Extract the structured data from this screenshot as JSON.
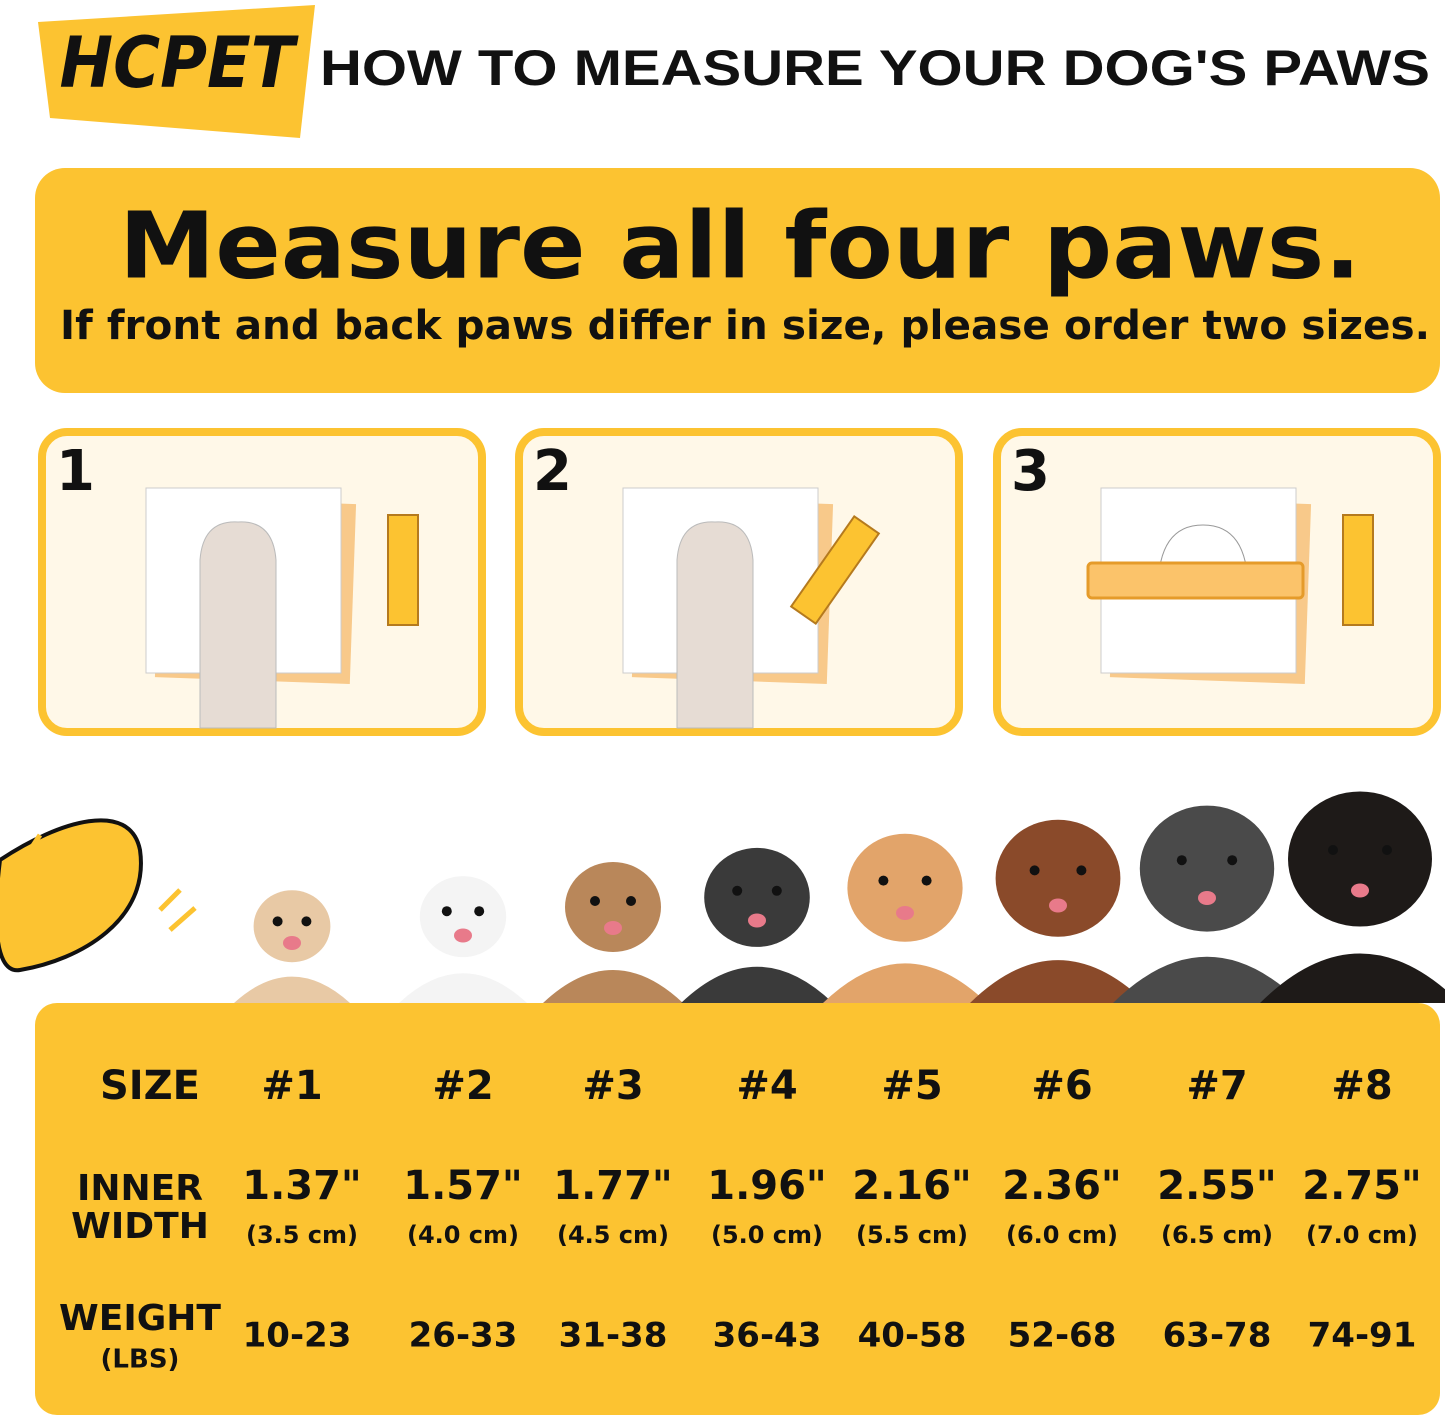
{
  "brand": "HCPET",
  "title": "HOW TO MEASURE YOUR DOG'S PAWS",
  "banner": {
    "heading": "Measure all four paws.",
    "subheading": "If front and back paws differ in size, please order two sizes."
  },
  "steps": [
    "1",
    "2",
    "3"
  ],
  "table": {
    "size_label": "SIZE",
    "width_label": [
      "INNER",
      "WIDTH"
    ],
    "weight_label": [
      "WEIGHT",
      "(LBS)"
    ],
    "sizes": [
      "#1",
      "#2",
      "#3",
      "#4",
      "#5",
      "#6",
      "#7",
      "#8"
    ],
    "widths": [
      {
        "inch": "1.37\"",
        "cm": "(3.5 cm)"
      },
      {
        "inch": "1.57\"",
        "cm": "(4.0 cm)"
      },
      {
        "inch": "1.77\"",
        "cm": "(4.5 cm)"
      },
      {
        "inch": "1.96\"",
        "cm": "(5.0 cm)"
      },
      {
        "inch": "2.16\"",
        "cm": "(5.5 cm)"
      },
      {
        "inch": "2.36\"",
        "cm": "(6.0 cm)"
      },
      {
        "inch": "2.55\"",
        "cm": "(6.5 cm)"
      },
      {
        "inch": "2.75\"",
        "cm": "(7.0 cm)"
      }
    ],
    "weights": [
      "10-23",
      "26-33",
      "31-38",
      "36-43",
      "40-58",
      "52-68",
      "63-78",
      "74-91"
    ]
  }
}
